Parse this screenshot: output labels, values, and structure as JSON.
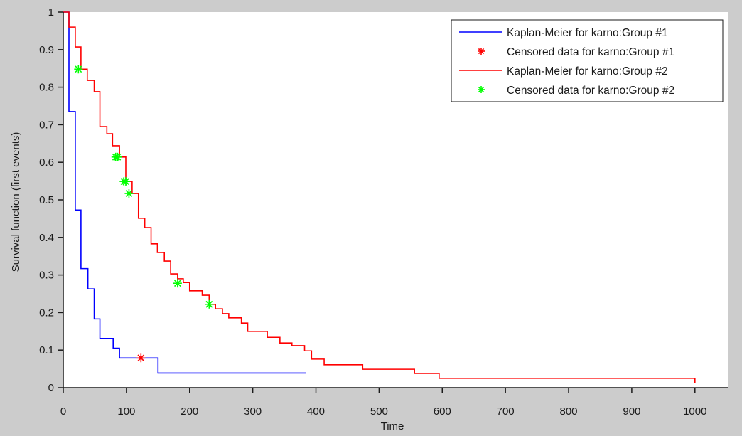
{
  "chart_data": {
    "type": "line",
    "subtype": "kaplan-meier-step",
    "title": "",
    "xlabel": "Time",
    "ylabel": "Survival function (first events)",
    "xlim": [
      0,
      1052
    ],
    "ylim": [
      0,
      1
    ],
    "x_ticks": [
      0,
      100,
      200,
      300,
      400,
      500,
      600,
      700,
      800,
      900,
      1000
    ],
    "y_ticks": [
      0,
      0.1,
      0.2,
      0.3,
      0.4,
      0.5,
      0.6,
      0.7,
      0.8,
      0.9,
      1
    ],
    "y_tick_labels": [
      "0",
      "0.1",
      "0.2",
      "0.3",
      "0.4",
      "0.5",
      "0.6",
      "0.7",
      "0.8",
      "0.9",
      "1"
    ],
    "grid": false,
    "legend_position": "upper right",
    "series": [
      {
        "name": "Kaplan-Meier for karno:Group #1",
        "kind": "step",
        "color": "#0000ff",
        "x": [
          0,
          9,
          19,
          28,
          39,
          49,
          58,
          79,
          89,
          150,
          384
        ],
        "y": [
          1.0,
          0.735,
          0.473,
          0.317,
          0.263,
          0.183,
          0.131,
          0.105,
          0.079,
          0.039,
          0.039
        ]
      },
      {
        "name": "Censored data for karno:Group #1",
        "kind": "marker",
        "marker": "*",
        "color": "#ff0000",
        "x": [
          123
        ],
        "y": [
          0.079
        ]
      },
      {
        "name": "Kaplan-Meier for karno:Group #2",
        "kind": "step",
        "color": "#ff0000",
        "x": [
          0,
          9,
          19,
          28,
          38,
          49,
          58,
          69,
          78,
          89,
          99,
          109,
          119,
          129,
          139,
          149,
          160,
          170,
          181,
          190,
          200,
          220,
          231,
          241,
          252,
          262,
          282,
          292,
          323,
          343,
          362,
          382,
          393,
          413,
          474,
          556,
          595,
          1000
        ],
        "y": [
          1.0,
          0.96,
          0.907,
          0.848,
          0.818,
          0.788,
          0.695,
          0.676,
          0.644,
          0.614,
          0.549,
          0.517,
          0.451,
          0.426,
          0.383,
          0.36,
          0.337,
          0.303,
          0.29,
          0.28,
          0.258,
          0.246,
          0.222,
          0.21,
          0.197,
          0.186,
          0.172,
          0.15,
          0.134,
          0.119,
          0.112,
          0.098,
          0.076,
          0.061,
          0.049,
          0.038,
          0.025,
          0.013
        ]
      },
      {
        "name": "Censored data for karno:Group #2",
        "kind": "marker",
        "marker": "*",
        "color": "#00ff00",
        "x": [
          24,
          83,
          86,
          96,
          99,
          104,
          181,
          231
        ],
        "y": [
          0.848,
          0.614,
          0.614,
          0.549,
          0.549,
          0.517,
          0.278,
          0.222
        ]
      }
    ]
  },
  "legend": {
    "items": [
      {
        "label": "Kaplan-Meier for karno:Group #1",
        "style": "line",
        "color": "#0000ff"
      },
      {
        "label": "Censored data for karno:Group #1",
        "style": "marker",
        "color": "#ff0000"
      },
      {
        "label": "Kaplan-Meier for karno:Group #2",
        "style": "line",
        "color": "#ff0000"
      },
      {
        "label": "Censored data for karno:Group #2",
        "style": "marker",
        "color": "#00ff00"
      }
    ]
  },
  "colors": {
    "figure_background": "#cccccc",
    "axes_background": "#ffffff",
    "axis": "#1a1a1a"
  }
}
